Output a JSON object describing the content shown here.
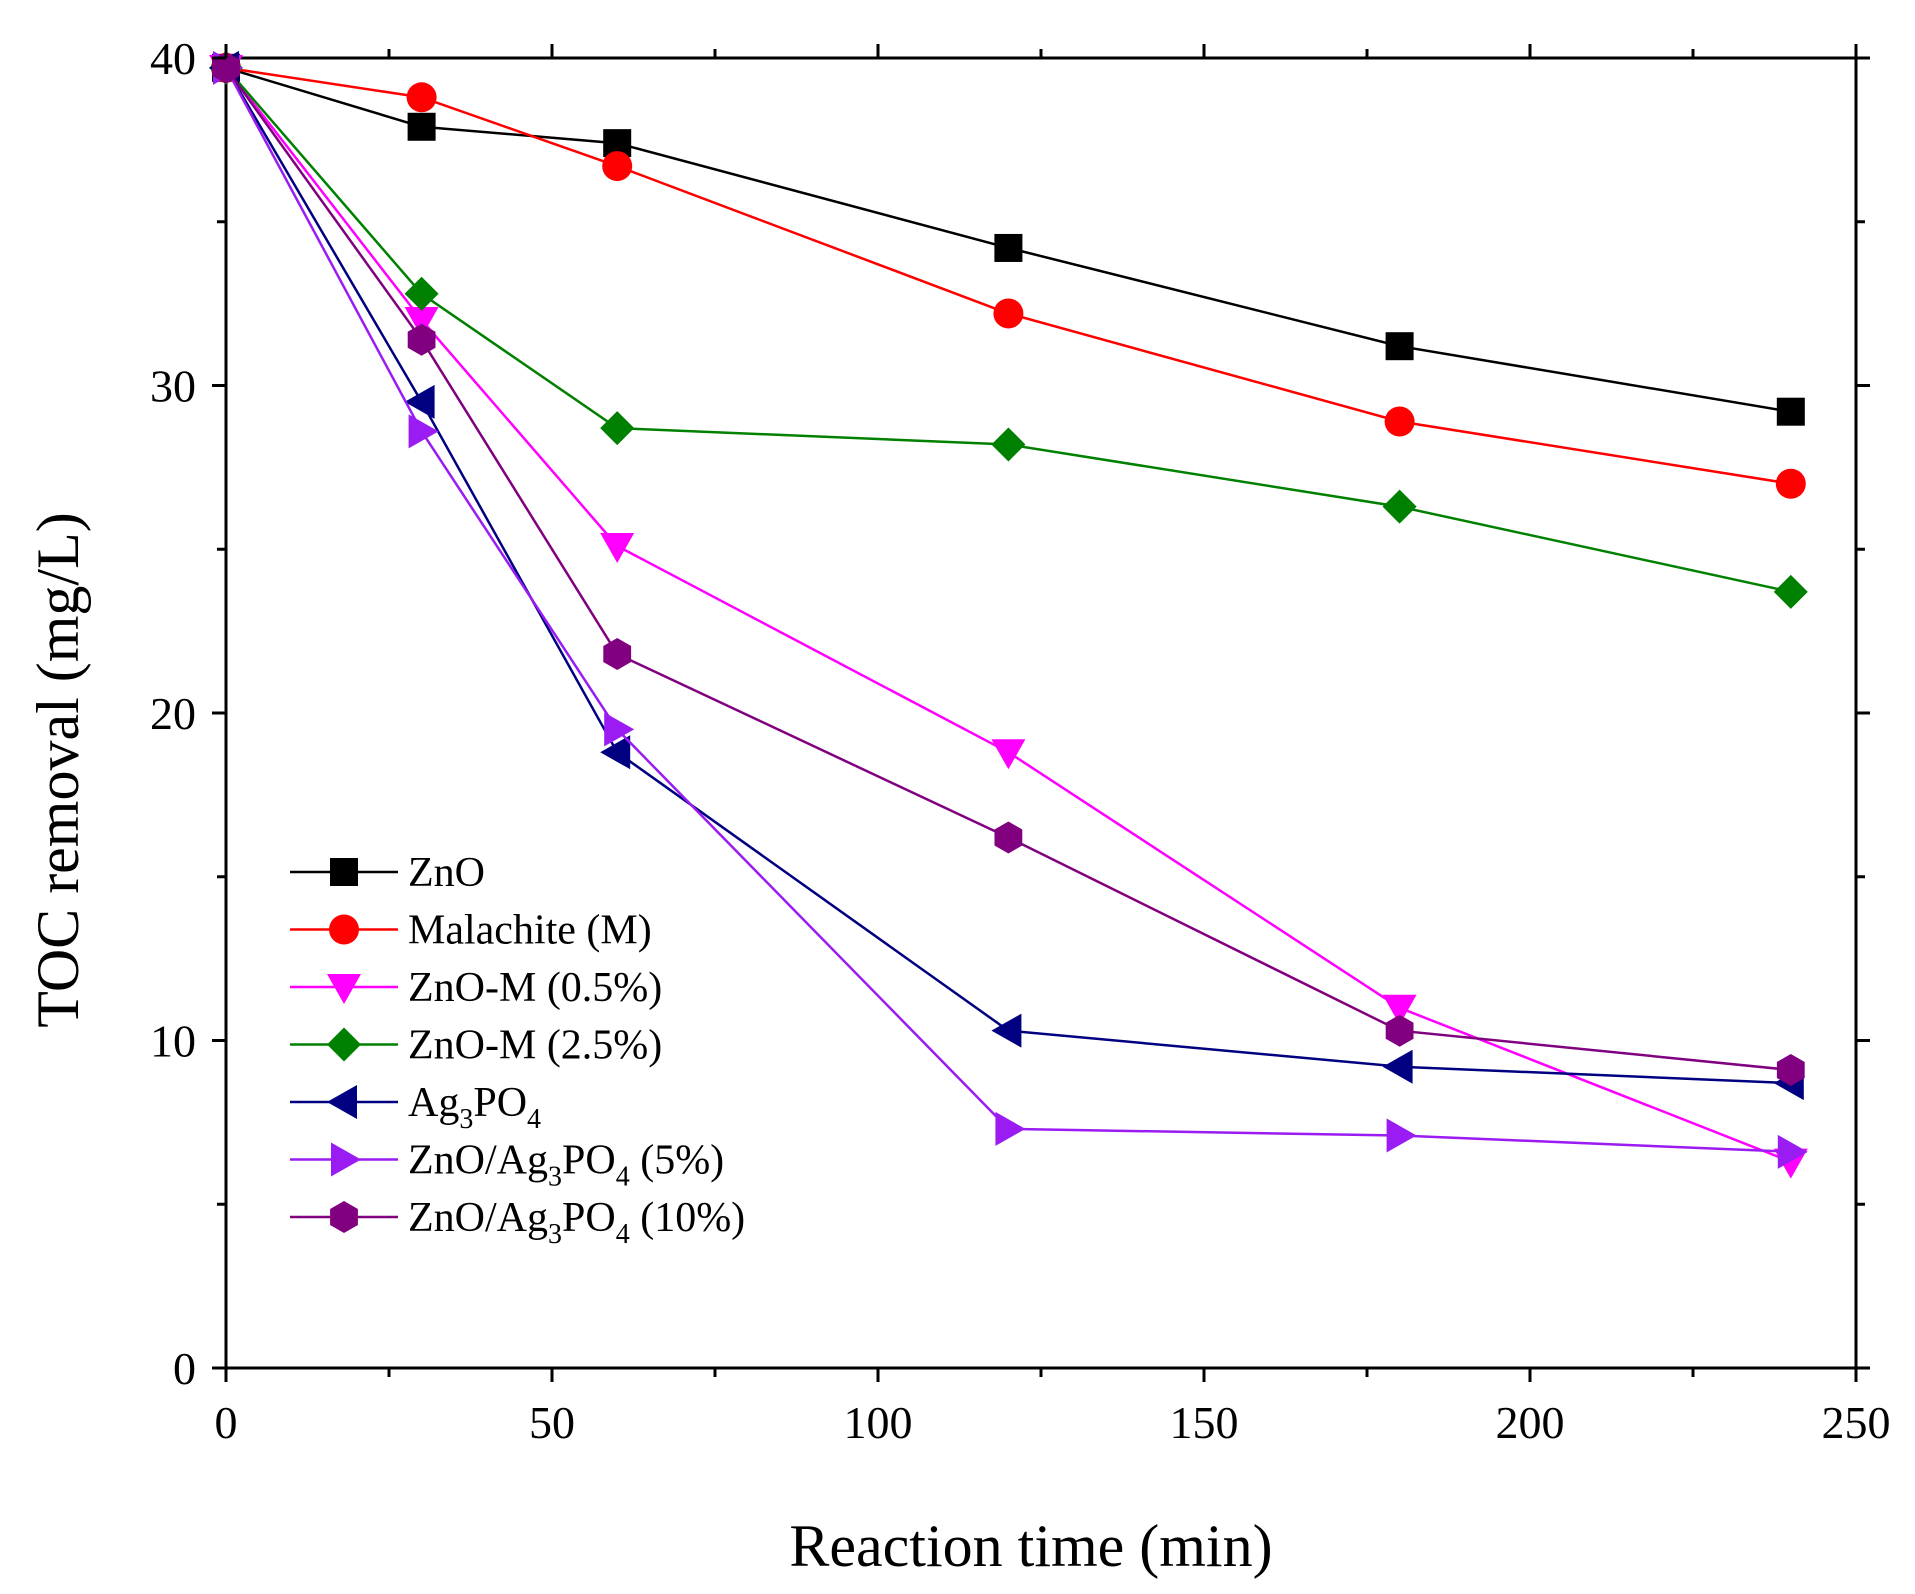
{
  "chart_data": {
    "type": "line",
    "title": "",
    "xlabel": "Reaction time (min)",
    "ylabel": "TOC removal (mg/L)",
    "xlim": [
      0,
      250
    ],
    "ylim": [
      0,
      40
    ],
    "x_ticks": [
      "0",
      "50",
      "100",
      "150",
      "200",
      "250"
    ],
    "y_ticks": [
      "0",
      "10",
      "20",
      "30",
      "40"
    ],
    "grid": false,
    "legend_position": "lower-left",
    "series": [
      {
        "name": "ZnO",
        "color": "#000000",
        "marker": "square",
        "x": [
          0,
          30,
          60,
          120,
          180,
          240
        ],
        "y": [
          39.7,
          37.9,
          37.4,
          34.2,
          31.2,
          29.2
        ]
      },
      {
        "name": "Malachite (M)",
        "color": "#ff0000",
        "marker": "circle",
        "x": [
          0,
          30,
          60,
          120,
          180,
          240
        ],
        "y": [
          39.7,
          38.8,
          36.7,
          32.2,
          28.9,
          27.0
        ]
      },
      {
        "name": "ZnO-M (0.5%)",
        "color": "#ff00ff",
        "marker": "triangle-down",
        "x": [
          0,
          30,
          60,
          120,
          180,
          240
        ],
        "y": [
          39.7,
          32.0,
          25.1,
          18.8,
          11.0,
          6.3
        ]
      },
      {
        "name": "ZnO-M (2.5%)",
        "color": "#008000",
        "marker": "diamond",
        "x": [
          0,
          30,
          60,
          120,
          180,
          240
        ],
        "y": [
          39.7,
          32.8,
          28.7,
          28.2,
          26.3,
          23.7
        ]
      },
      {
        "name": "Ag3PO4",
        "name_parts": [
          "Ag",
          "3",
          "PO",
          "4",
          ""
        ],
        "color": "#000080",
        "marker": "triangle-left",
        "x": [
          0,
          30,
          60,
          120,
          180,
          240
        ],
        "y": [
          39.7,
          29.5,
          18.8,
          10.3,
          9.2,
          8.7
        ]
      },
      {
        "name": "ZnO/Ag3PO4 (5%)",
        "name_parts": [
          "ZnO/Ag",
          "3",
          "PO",
          "4",
          "  (5%)"
        ],
        "color": "#9b1cf2",
        "marker": "triangle-right",
        "x": [
          0,
          30,
          60,
          120,
          180,
          240
        ],
        "y": [
          39.7,
          28.6,
          19.5,
          7.3,
          7.1,
          6.6
        ]
      },
      {
        "name": "ZnO/Ag3PO4 (10%)",
        "name_parts": [
          "ZnO/Ag",
          "3",
          "PO",
          "4",
          "  (10%)"
        ],
        "color": "#800080",
        "marker": "hexagon",
        "x": [
          0,
          30,
          60,
          120,
          180,
          240
        ],
        "y": [
          39.7,
          31.4,
          21.8,
          16.2,
          10.3,
          9.1
        ]
      }
    ]
  }
}
